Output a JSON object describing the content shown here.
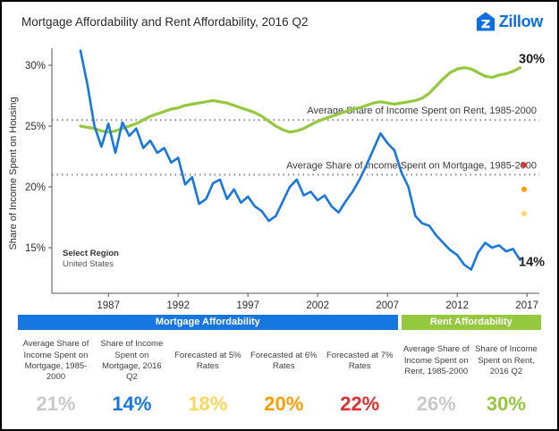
{
  "header": {
    "title": "Mortgage Affordability and Rent Affordability, 2016 Q2",
    "logo_text": "Zillow"
  },
  "chart_data": {
    "type": "line",
    "title": "Mortgage Affordability and Rent Affordability, 2016 Q2",
    "xlabel": "",
    "ylabel": "Share of Income Spent on Housing",
    "xlim": [
      1983,
      2017.5
    ],
    "ylim": [
      12,
      32
    ],
    "grid": false,
    "legend_position": "none",
    "x_ticks": [
      1987,
      1992,
      1997,
      2002,
      2007,
      2012,
      2017
    ],
    "y_ticks": [
      15,
      20,
      25,
      30
    ],
    "y_tick_suffix": "%",
    "x_start": 1985,
    "x_step": 0.5,
    "series": [
      {
        "name": "Share of Income Spent on Rent",
        "color": "#94c83d",
        "width": 3.2,
        "values": [
          25.0,
          24.9,
          24.8,
          24.6,
          24.5,
          24.6,
          24.8,
          25.0,
          25.2,
          25.5,
          25.8,
          26.0,
          26.2,
          26.4,
          26.5,
          26.7,
          26.8,
          26.9,
          27.0,
          27.1,
          27.0,
          26.9,
          26.7,
          26.5,
          26.3,
          26.1,
          25.8,
          25.4,
          25.0,
          24.7,
          24.5,
          24.6,
          24.8,
          25.1,
          25.4,
          25.6,
          25.8,
          26.0,
          26.2,
          26.4,
          26.5,
          26.7,
          26.9,
          27.0,
          26.9,
          26.8,
          26.9,
          27.0,
          27.1,
          27.3,
          27.7,
          28.3,
          28.9,
          29.4,
          29.7,
          29.8,
          29.7,
          29.4,
          29.1,
          29.0,
          29.2,
          29.3,
          29.5,
          29.8
        ]
      },
      {
        "name": "Share of Income Spent on Mortgage",
        "color": "#1777e0",
        "width": 2.6,
        "values": [
          31.2,
          28.4,
          25.0,
          23.3,
          25.2,
          22.8,
          25.3,
          24.2,
          24.8,
          23.2,
          23.8,
          22.8,
          23.2,
          22.0,
          22.4,
          20.2,
          20.8,
          18.6,
          19.0,
          20.3,
          20.6,
          19.0,
          19.8,
          18.7,
          19.2,
          18.4,
          18.0,
          17.2,
          17.6,
          18.8,
          20.0,
          20.6,
          19.3,
          19.6,
          18.9,
          19.3,
          18.4,
          17.9,
          18.8,
          19.6,
          20.6,
          21.8,
          23.1,
          24.4,
          23.6,
          23.0,
          21.2,
          20.0,
          17.6,
          17.0,
          16.8,
          16.0,
          15.4,
          14.8,
          14.4,
          13.6,
          13.2,
          14.6,
          15.4,
          15.0,
          15.2,
          14.7,
          14.9,
          14.0
        ]
      }
    ],
    "reference_lines": [
      {
        "value": 25.5,
        "label": "Average Share of Income Spent on Rent, 1985-2000"
      },
      {
        "value": 21.0,
        "label": "Average Share of Income Spent on Mortgage, 1985-2000"
      }
    ],
    "forecast_points": [
      {
        "value": 21.8,
        "color": "#e03131",
        "label": "Forecasted at 7% Rates"
      },
      {
        "value": 19.8,
        "color": "#ff9d00",
        "label": "Forecasted at 6% Rates"
      },
      {
        "value": 17.8,
        "color": "#fbd75b",
        "label": "Forecasted at 5% Rates"
      }
    ],
    "end_labels": [
      {
        "text": "30%",
        "y": 30.2
      },
      {
        "text": "14%",
        "y": 13.5
      }
    ],
    "region_selector": {
      "title": "Select Region",
      "value": "United States"
    }
  },
  "summary": {
    "mortgage_header": "Mortgage Affordability",
    "rent_header": "Rent Affordability",
    "mortgage_color": "#1777e0",
    "rent_color": "#94c83d",
    "columns": [
      {
        "label": "Average Share of Income Spent on Mortgage, 1985-2000",
        "value": "21%",
        "color": "#c9c9c9"
      },
      {
        "label": "Share of Income Spent on Mortgage, 2016 Q2",
        "value": "14%",
        "color": "#1777e0"
      },
      {
        "label": "Forecasted at 5% Rates",
        "value": "18%",
        "color": "#fbd75b"
      },
      {
        "label": "Forecasted at 6% Rates",
        "value": "20%",
        "color": "#ff9d00"
      },
      {
        "label": "Forecasted at 7% Rates",
        "value": "22%",
        "color": "#e03131"
      },
      {
        "label": "Average Share of Income Spent on Rent, 1985-2000",
        "value": "26%",
        "color": "#c9c9c9"
      },
      {
        "label": "Share of Income Spent on Rent, 2016 Q2",
        "value": "30%",
        "color": "#94c83d"
      }
    ]
  }
}
